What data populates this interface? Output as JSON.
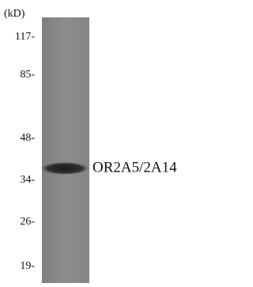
{
  "unit": "(kD)",
  "markers": [
    "117-",
    "85-",
    "48-",
    "34-",
    "26-",
    "19-"
  ],
  "band_label": "OR2A5/2A14"
}
